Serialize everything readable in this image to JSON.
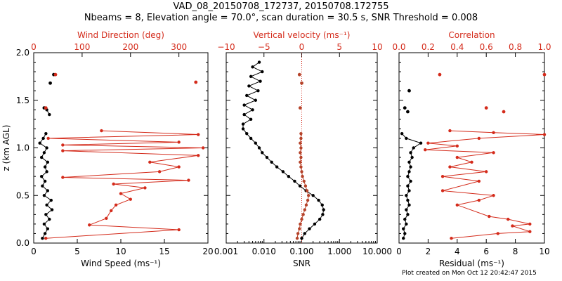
{
  "header": {
    "title": "VAD_08_20150708_172737, 20150708.172755",
    "subtitle": "Nbeams = 8, Elevation angle = 70.0°, scan duration = 30.5 s, SNR Threshold = 0.008"
  },
  "footer": "Plot created on Mon Oct 12 20:42:47 2015",
  "colors": {
    "primary": "#000000",
    "secondary": "#d42b1b",
    "markers": "#b5432a"
  },
  "chart_data": [
    {
      "type": "line",
      "name": "panel-wind",
      "y_label": "z (km AGL)",
      "ylim": [
        0,
        2.0
      ],
      "y_ticks": [
        0.0,
        0.5,
        1.0,
        1.5,
        2.0
      ],
      "y_tick_labels": [
        "0.0",
        "0.5",
        "1.0",
        "1.5",
        "2.0"
      ],
      "bottom_axis": {
        "label": "Wind Speed (ms⁻¹)",
        "range": [
          0,
          20
        ],
        "ticks": [
          0,
          5,
          10,
          15,
          20
        ],
        "tick_labels": [
          "0",
          "5",
          "10",
          "15",
          "20"
        ]
      },
      "top_axis": {
        "label": "Wind Direction (deg)",
        "range": [
          0,
          360
        ],
        "ticks": [
          0,
          100,
          200,
          300
        ],
        "tick_labels": [
          "0",
          "100",
          "200",
          "300"
        ]
      },
      "series": [
        {
          "name": "Wind Speed",
          "axis": "bottom",
          "color": "#000000",
          "points": [
            [
              1.0,
              0.05
            ],
            [
              1.3,
              0.1
            ],
            [
              1.6,
              0.15
            ],
            [
              1.2,
              0.2
            ],
            [
              1.8,
              0.25
            ],
            [
              1.4,
              0.3
            ],
            [
              2.1,
              0.35
            ],
            [
              1.5,
              0.4
            ],
            [
              2.0,
              0.45
            ],
            [
              1.2,
              0.5
            ],
            [
              1.6,
              0.55
            ],
            [
              1.0,
              0.6
            ],
            [
              1.3,
              0.65
            ],
            [
              0.9,
              0.7
            ],
            [
              1.5,
              0.75
            ],
            [
              1.3,
              0.8
            ],
            [
              1.6,
              0.85
            ],
            [
              0.9,
              0.9
            ],
            [
              1.2,
              0.95
            ],
            [
              1.5,
              1.0
            ],
            [
              0.7,
              1.05
            ],
            [
              1.1,
              1.1
            ],
            [
              1.4,
              1.15
            ],
            [
              null,
              null
            ],
            [
              1.5,
              1.4
            ],
            [
              1.8,
              1.35
            ]
          ],
          "isolated": [
            [
              2.3,
              1.77
            ],
            [
              1.9,
              1.68
            ],
            [
              1.2,
              1.42
            ]
          ]
        },
        {
          "name": "Wind Direction",
          "axis": "top",
          "color": "#d42b1b",
          "points": [
            [
              25,
              0.05
            ],
            [
              300,
              0.14
            ],
            [
              115,
              0.19
            ],
            [
              150,
              0.26
            ],
            [
              160,
              0.34
            ],
            [
              170,
              0.4
            ],
            [
              200,
              0.46
            ],
            [
              180,
              0.52
            ],
            [
              230,
              0.58
            ],
            [
              165,
              0.62
            ],
            [
              320,
              0.66
            ],
            [
              60,
              0.69
            ],
            [
              260,
              0.75
            ],
            [
              300,
              0.8
            ],
            [
              240,
              0.85
            ],
            [
              340,
              0.92
            ],
            [
              60,
              0.97
            ],
            [
              350,
              1.0
            ],
            [
              60,
              1.03
            ],
            [
              300,
              1.06
            ],
            [
              30,
              1.1
            ],
            [
              340,
              1.14
            ],
            [
              140,
              1.18
            ]
          ],
          "isolated": [
            [
              45,
              1.77
            ],
            [
              335,
              1.69
            ],
            [
              25,
              1.42
            ]
          ]
        }
      ]
    },
    {
      "type": "line",
      "name": "panel-snr",
      "ylim": [
        0,
        2.0
      ],
      "bottom_axis": {
        "label": "SNR",
        "scale": "log",
        "range": [
          0.001,
          10
        ],
        "ticks": [
          0.001,
          0.01,
          0.1,
          1,
          10
        ],
        "tick_labels": [
          "0.001",
          "0.010",
          "0.100",
          "1.000",
          "10.000"
        ]
      },
      "top_axis": {
        "label": "Vertical velocity (ms⁻¹)",
        "range": [
          -10,
          10
        ],
        "ticks": [
          -10,
          -5,
          0,
          5,
          10
        ],
        "tick_labels": [
          "−10",
          "−5",
          "0",
          "5",
          "10"
        ]
      },
      "series": [
        {
          "name": "SNR",
          "axis": "bottom",
          "color": "#000000",
          "points": [
            [
              0.1,
              0.05
            ],
            [
              0.12,
              0.1
            ],
            [
              0.16,
              0.15
            ],
            [
              0.22,
              0.2
            ],
            [
              0.3,
              0.25
            ],
            [
              0.36,
              0.3
            ],
            [
              0.38,
              0.35
            ],
            [
              0.35,
              0.4
            ],
            [
              0.28,
              0.45
            ],
            [
              0.2,
              0.5
            ],
            [
              0.13,
              0.55
            ],
            [
              0.09,
              0.6
            ],
            [
              0.065,
              0.65
            ],
            [
              0.045,
              0.7
            ],
            [
              0.032,
              0.75
            ],
            [
              0.022,
              0.8
            ],
            [
              0.016,
              0.85
            ],
            [
              0.012,
              0.9
            ],
            [
              0.009,
              0.95
            ],
            [
              0.0075,
              1.0
            ],
            [
              0.006,
              1.05
            ],
            [
              0.0045,
              1.1
            ],
            [
              0.0035,
              1.15
            ],
            [
              0.0028,
              1.2
            ],
            [
              0.0028,
              1.25
            ],
            [
              0.0045,
              1.3
            ],
            [
              0.003,
              1.35
            ],
            [
              0.005,
              1.4
            ],
            [
              0.003,
              1.45
            ],
            [
              0.006,
              1.5
            ],
            [
              0.0035,
              1.55
            ],
            [
              0.007,
              1.6
            ],
            [
              0.004,
              1.65
            ],
            [
              0.008,
              1.7
            ],
            [
              0.0045,
              1.75
            ],
            [
              0.009,
              1.8
            ],
            [
              0.005,
              1.85
            ],
            [
              0.0075,
              1.9
            ]
          ]
        },
        {
          "name": "Vertical velocity",
          "axis": "top",
          "color": "#b5432a",
          "points": [
            [
              -0.6,
              0.05
            ],
            [
              -0.5,
              0.1
            ],
            [
              -0.3,
              0.15
            ],
            [
              -0.2,
              0.2
            ],
            [
              0.0,
              0.25
            ],
            [
              0.2,
              0.3
            ],
            [
              0.4,
              0.35
            ],
            [
              0.6,
              0.4
            ],
            [
              0.8,
              0.45
            ],
            [
              0.9,
              0.5
            ],
            [
              0.7,
              0.55
            ],
            [
              0.5,
              0.6
            ],
            [
              0.3,
              0.65
            ],
            [
              0.1,
              0.7
            ],
            [
              0.0,
              0.75
            ],
            [
              -0.1,
              0.8
            ],
            [
              -0.2,
              0.85
            ],
            [
              -0.1,
              0.9
            ],
            [
              -0.2,
              0.95
            ],
            [
              -0.1,
              1.0
            ],
            [
              -0.2,
              1.05
            ],
            [
              -0.1,
              1.1
            ],
            [
              -0.1,
              1.15
            ]
          ],
          "isolated": [
            [
              -0.3,
              1.77
            ],
            [
              0.0,
              1.68
            ],
            [
              -0.2,
              1.42
            ]
          ]
        }
      ]
    },
    {
      "type": "line",
      "name": "panel-residual",
      "ylim": [
        0,
        2.0
      ],
      "bottom_axis": {
        "label": "Residual (ms⁻¹)",
        "range": [
          0,
          10
        ],
        "ticks": [
          0,
          2,
          4,
          6,
          8,
          10
        ],
        "tick_labels": [
          "0",
          "2",
          "4",
          "6",
          "8",
          "10"
        ]
      },
      "top_axis": {
        "label": "Correlation",
        "range": [
          0.0,
          1.0
        ],
        "ticks": [
          0.0,
          0.2,
          0.4,
          0.6,
          0.8,
          1.0
        ],
        "tick_labels": [
          "0.0",
          "0.2",
          "0.4",
          "0.6",
          "0.8",
          "1.0"
        ]
      },
      "series": [
        {
          "name": "Residual",
          "axis": "bottom",
          "color": "#000000",
          "points": [
            [
              0.3,
              0.05
            ],
            [
              0.4,
              0.1
            ],
            [
              0.3,
              0.15
            ],
            [
              0.5,
              0.2
            ],
            [
              0.4,
              0.25
            ],
            [
              0.6,
              0.3
            ],
            [
              0.5,
              0.35
            ],
            [
              0.7,
              0.4
            ],
            [
              0.6,
              0.45
            ],
            [
              0.5,
              0.5
            ],
            [
              0.7,
              0.55
            ],
            [
              0.6,
              0.6
            ],
            [
              0.8,
              0.65
            ],
            [
              0.6,
              0.7
            ],
            [
              0.7,
              0.75
            ],
            [
              0.8,
              0.8
            ],
            [
              0.7,
              0.85
            ],
            [
              0.9,
              0.9
            ],
            [
              0.8,
              0.95
            ],
            [
              1.0,
              1.0
            ],
            [
              1.5,
              1.05
            ],
            [
              0.5,
              1.1
            ],
            [
              0.2,
              1.15
            ]
          ],
          "isolated": [
            [
              0.7,
              1.6
            ],
            [
              0.4,
              1.42
            ],
            [
              0.6,
              1.38
            ]
          ]
        },
        {
          "name": "Correlation",
          "axis": "top",
          "color": "#d42b1b",
          "points": [
            [
              0.36,
              0.05
            ],
            [
              0.68,
              0.1
            ],
            [
              0.9,
              0.12
            ],
            [
              0.78,
              0.18
            ],
            [
              0.9,
              0.2
            ],
            [
              0.75,
              0.25
            ],
            [
              0.62,
              0.28
            ],
            [
              0.4,
              0.4
            ],
            [
              0.55,
              0.45
            ],
            [
              0.65,
              0.5
            ],
            [
              0.3,
              0.55
            ],
            [
              0.55,
              0.65
            ],
            [
              0.3,
              0.7
            ],
            [
              0.6,
              0.75
            ],
            [
              0.35,
              0.8
            ],
            [
              0.5,
              0.85
            ],
            [
              0.4,
              0.9
            ],
            [
              0.65,
              0.95
            ],
            [
              0.18,
              0.98
            ],
            [
              0.4,
              1.02
            ],
            [
              0.2,
              1.05
            ],
            [
              0.55,
              1.1
            ],
            [
              1.0,
              1.14
            ],
            [
              0.65,
              1.16
            ],
            [
              0.35,
              1.18
            ]
          ],
          "isolated": [
            [
              0.28,
              1.77
            ],
            [
              0.6,
              1.42
            ],
            [
              0.72,
              1.38
            ],
            [
              1.0,
              1.77
            ]
          ]
        }
      ]
    }
  ]
}
